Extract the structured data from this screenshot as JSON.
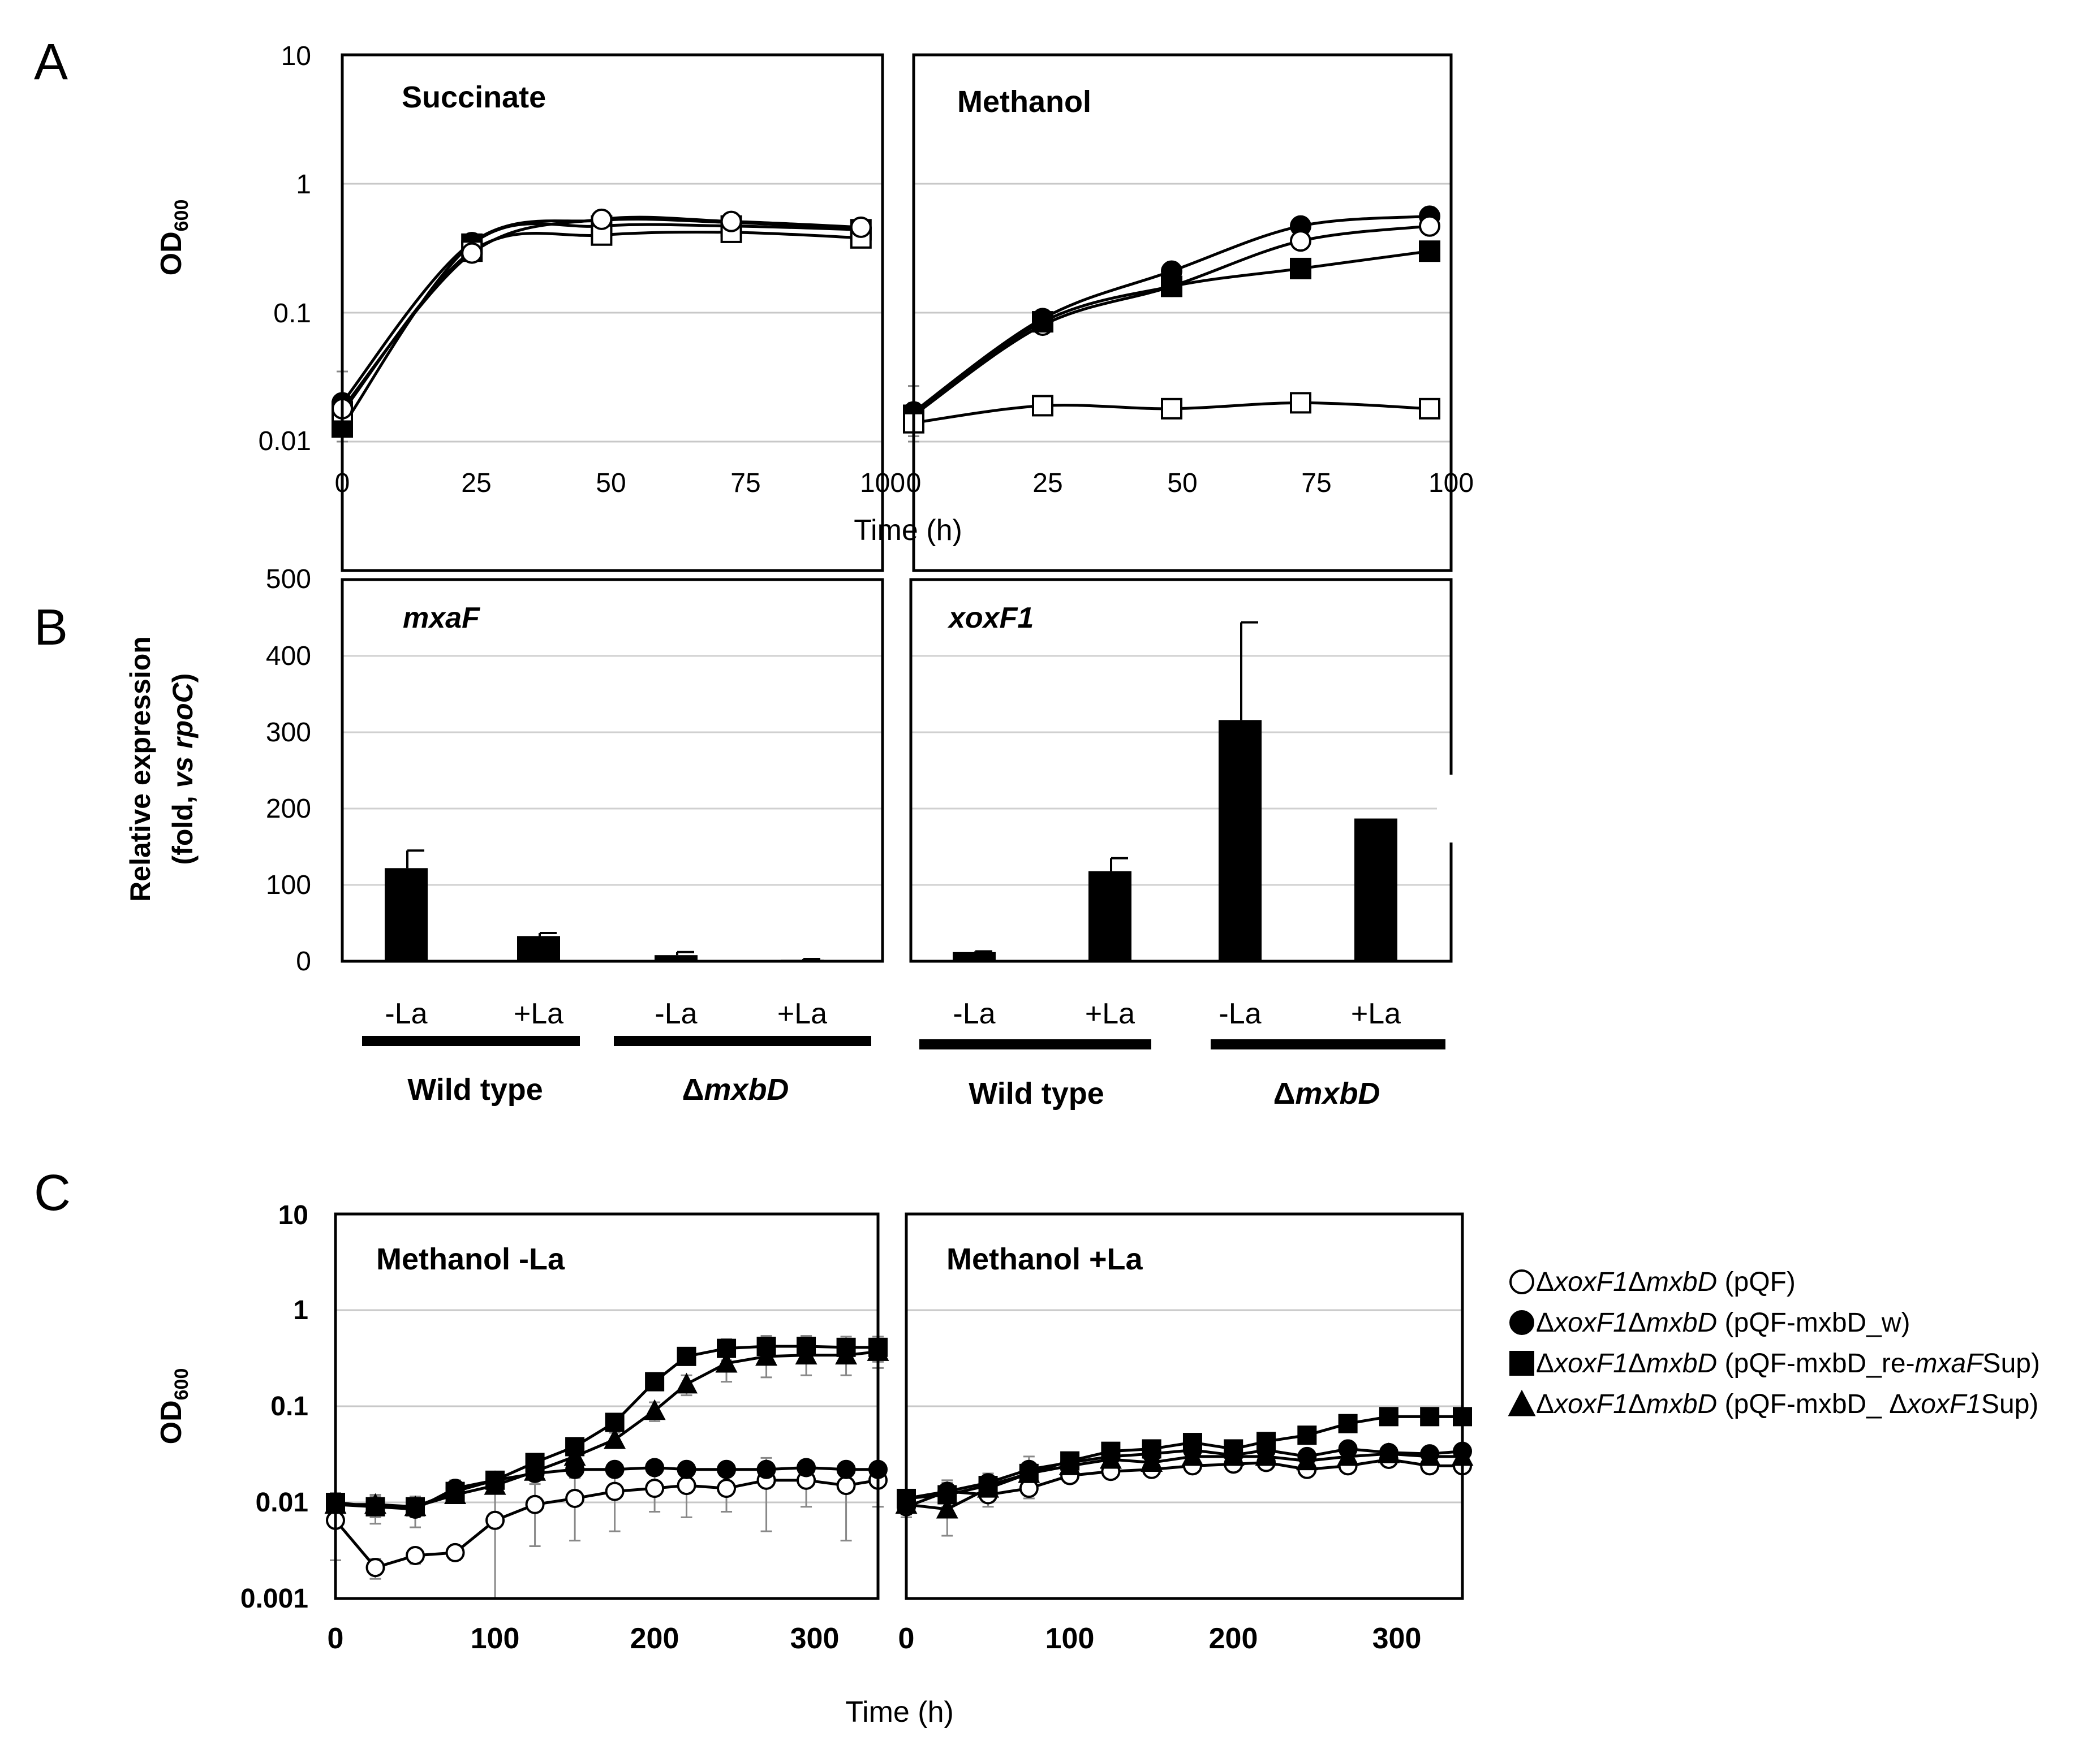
{
  "figure": {
    "panel_labels": [
      "A",
      "B",
      "C"
    ],
    "shared_xlabel_a": "Time (h)",
    "shared_xlabel_c": "Time (h)"
  },
  "chart_data": [
    {
      "id": "A-succinate",
      "type": "line",
      "scale": "log",
      "title": "Succinate",
      "ylabel": "OD600",
      "ylim": [
        0.01,
        10
      ],
      "yticks": [
        "0.01",
        "0.1",
        "1",
        "10"
      ],
      "xlim": [
        0,
        100
      ],
      "xticks": [
        "0",
        "25",
        "50",
        "75",
        "100"
      ],
      "x": [
        0,
        24,
        48,
        72,
        96
      ],
      "series": [
        {
          "name": "wt-filled-circle",
          "marker": "circle-filled",
          "values": [
            0.02,
            0.35,
            0.52,
            0.5,
            0.45
          ],
          "errors": [
            0.015,
            0.02,
            0.02,
            0.02,
            0.02
          ]
        },
        {
          "name": "filled-square",
          "marker": "square-filled",
          "values": [
            0.013,
            0.34,
            0.47,
            0.47,
            0.44
          ],
          "errors": [
            0.003,
            0.02,
            0.02,
            0.02,
            0.02
          ]
        },
        {
          "name": "open-square",
          "marker": "square-open",
          "values": [
            0.017,
            0.3,
            0.4,
            0.42,
            0.38
          ],
          "errors": [
            0.004,
            0.02,
            0.02,
            0.02,
            0.02
          ]
        },
        {
          "name": "open-circle",
          "marker": "circle-open",
          "values": [
            0.018,
            0.29,
            0.53,
            0.51,
            0.46
          ],
          "errors": [
            0.004,
            0.02,
            0.02,
            0.02,
            0.02
          ]
        }
      ]
    },
    {
      "id": "A-methanol",
      "type": "line",
      "scale": "log",
      "title": "Methanol",
      "ylim": [
        0.01,
        10
      ],
      "xlim": [
        0,
        100
      ],
      "xticks": [
        "0",
        "25",
        "50",
        "75",
        "100"
      ],
      "x": [
        0,
        24,
        48,
        72,
        96
      ],
      "series": [
        {
          "name": "filled-circle",
          "marker": "circle-filled",
          "values": [
            0.017,
            0.09,
            0.21,
            0.47,
            0.56
          ],
          "errors": [
            0.01,
            0.005,
            0.01,
            0.02,
            0.03
          ]
        },
        {
          "name": "open-circle",
          "marker": "circle-open",
          "values": [
            0.016,
            0.08,
            0.16,
            0.36,
            0.47
          ],
          "errors": [
            0.004,
            0.005,
            0.01,
            0.02,
            0.02
          ]
        },
        {
          "name": "filled-square",
          "marker": "square-filled",
          "values": [
            0.016,
            0.085,
            0.16,
            0.22,
            0.3
          ],
          "errors": [
            0.003,
            0.005,
            0.01,
            0.02,
            0.02
          ]
        },
        {
          "name": "open-square",
          "marker": "square-open",
          "values": [
            0.014,
            0.019,
            0.018,
            0.02,
            0.018
          ],
          "errors": [
            0.003,
            0.002,
            0.002,
            0.002,
            0.002
          ]
        }
      ]
    },
    {
      "id": "B-mxaF",
      "type": "bar",
      "title": "mxaF",
      "ylabel_line1": "Relative expression",
      "ylabel_line2_pre": "(fold, ",
      "ylabel_line2_vs": "vs",
      "ylabel_line2_gene": "rpoC",
      "ylabel_line2_post": ")",
      "ylim": [
        0,
        500
      ],
      "yticks": [
        "0",
        "100",
        "200",
        "300",
        "400",
        "500"
      ],
      "categories": [
        "-La",
        "+La",
        "-La",
        "+La"
      ],
      "values": [
        122,
        33,
        8,
        2
      ],
      "errors": [
        23,
        4,
        4,
        1
      ],
      "groups": [
        {
          "label_pre": "",
          "label_ital": "",
          "label_plain": "Wild type"
        },
        {
          "label_pre": "Δ",
          "label_ital": "mxbD",
          "label_plain": ""
        }
      ]
    },
    {
      "id": "B-xoxF1",
      "type": "bar",
      "title": "xoxF1",
      "ylim": [
        0,
        500
      ],
      "categories": [
        "-La",
        "+La",
        "-La",
        "+La"
      ],
      "values": [
        12,
        118,
        316,
        187
      ],
      "errors": [
        1,
        17,
        128,
        0
      ],
      "groups": [
        {
          "label_pre": "",
          "label_ital": "",
          "label_plain": "Wild type"
        },
        {
          "label_pre": "Δ",
          "label_ital": "mxbD",
          "label_plain": ""
        }
      ]
    },
    {
      "id": "C-minusLa",
      "type": "line",
      "scale": "log",
      "title": "Methanol -La",
      "ylabel": "OD600",
      "ylim": [
        0.001,
        10
      ],
      "yticks": [
        "0.001",
        "0.01",
        "0.1",
        "1",
        "10"
      ],
      "xlim": [
        0,
        340
      ],
      "xticks": [
        "0",
        "100",
        "200",
        "300"
      ],
      "x": [
        0,
        25,
        50,
        75,
        100,
        125,
        150,
        175,
        200,
        220,
        245,
        270,
        295,
        320,
        340
      ],
      "series": [
        {
          "name": "open-circle",
          "marker": "circle-open",
          "values": [
            0.0065,
            0.0021,
            0.0028,
            0.003,
            0.0065,
            0.0095,
            0.011,
            0.013,
            0.014,
            0.015,
            0.014,
            0.017,
            0.017,
            0.015,
            0.017
          ],
          "errors": [
            0.004,
            0.0005,
            0.0005,
            0.0005,
            0.006,
            0.006,
            0.007,
            0.008,
            0.006,
            0.008,
            0.006,
            0.012,
            0.008,
            0.011,
            0.008
          ]
        },
        {
          "name": "filled-circle",
          "marker": "circle-filled",
          "values": [
            0.0095,
            0.009,
            0.0085,
            0.014,
            0.017,
            0.02,
            0.022,
            0.022,
            0.023,
            0.022,
            0.022,
            0.022,
            0.023,
            0.022,
            0.022
          ],
          "errors": [
            0.003,
            0.003,
            0.003,
            0.003,
            0.003,
            0.003,
            0.003,
            0.003,
            0.003,
            0.003,
            0.003,
            0.003,
            0.003,
            0.003,
            0.003
          ]
        },
        {
          "name": "filled-square",
          "marker": "square-filled",
          "values": [
            0.01,
            0.009,
            0.009,
            0.013,
            0.017,
            0.026,
            0.038,
            0.068,
            0.18,
            0.33,
            0.4,
            0.42,
            0.42,
            0.41,
            0.41
          ],
          "errors": [
            0.002,
            0.002,
            0.002,
            0.002,
            0.002,
            0.003,
            0.005,
            0.01,
            0.03,
            0.05,
            0.1,
            0.12,
            0.12,
            0.12,
            0.12
          ]
        },
        {
          "name": "filled-triangle",
          "marker": "triangle-filled",
          "values": [
            0.0095,
            0.0095,
            0.009,
            0.012,
            0.015,
            0.021,
            0.03,
            0.045,
            0.09,
            0.17,
            0.28,
            0.33,
            0.34,
            0.34,
            0.37
          ],
          "errors": [
            0.002,
            0.002,
            0.002,
            0.002,
            0.002,
            0.003,
            0.004,
            0.008,
            0.02,
            0.04,
            0.1,
            0.13,
            0.13,
            0.13,
            0.12
          ]
        }
      ]
    },
    {
      "id": "C-plusLa",
      "type": "line",
      "scale": "log",
      "title": "Methanol +La",
      "ylim": [
        0.001,
        10
      ],
      "xlim": [
        0,
        340
      ],
      "xticks": [
        "0",
        "100",
        "200",
        "300"
      ],
      "x": [
        0,
        25,
        50,
        75,
        100,
        125,
        150,
        175,
        200,
        220,
        245,
        270,
        295,
        320,
        340
      ],
      "series": [
        {
          "name": "open-circle",
          "marker": "circle-open",
          "values": [
            0.009,
            0.013,
            0.012,
            0.014,
            0.019,
            0.021,
            0.022,
            0.024,
            0.025,
            0.026,
            0.022,
            0.024,
            0.028,
            0.024,
            0.024
          ],
          "errors": [
            0.002,
            0.003,
            0.003,
            0.003,
            0.003,
            0.003,
            0.003,
            0.003,
            0.003,
            0.003,
            0.003,
            0.003,
            0.003,
            0.003,
            0.003
          ]
        },
        {
          "name": "filled-circle",
          "marker": "circle-filled",
          "values": [
            0.011,
            0.013,
            0.016,
            0.022,
            0.026,
            0.03,
            0.032,
            0.035,
            0.031,
            0.035,
            0.03,
            0.036,
            0.033,
            0.032,
            0.034
          ],
          "errors": [
            0.002,
            0.004,
            0.004,
            0.008,
            0.006,
            0.006,
            0.006,
            0.005,
            0.005,
            0.005,
            0.005,
            0.005,
            0.005,
            0.005,
            0.005
          ]
        },
        {
          "name": "filled-square",
          "marker": "square-filled",
          "values": [
            0.011,
            0.012,
            0.015,
            0.02,
            0.027,
            0.034,
            0.036,
            0.042,
            0.036,
            0.043,
            0.05,
            0.066,
            0.078,
            0.078,
            0.078
          ],
          "errors": [
            0.002,
            0.003,
            0.004,
            0.005,
            0.005,
            0.005,
            0.005,
            0.005,
            0.005,
            0.005,
            0.005,
            0.006,
            0.006,
            0.006,
            0.006
          ]
        },
        {
          "name": "filled-triangle",
          "marker": "triangle-filled",
          "values": [
            0.0095,
            0.0085,
            0.014,
            0.02,
            0.024,
            0.028,
            0.026,
            0.03,
            0.03,
            0.03,
            0.027,
            0.03,
            0.032,
            0.03,
            0.03
          ],
          "errors": [
            0.002,
            0.004,
            0.004,
            0.004,
            0.004,
            0.004,
            0.004,
            0.004,
            0.004,
            0.004,
            0.004,
            0.004,
            0.004,
            0.004,
            0.004
          ]
        }
      ]
    }
  ],
  "legend": [
    {
      "marker": "circle-open",
      "delta1": "Δ",
      "ital1": "xoxF1",
      "delta2": "Δ",
      "ital2": "mxbD",
      "plain": " (pQF)",
      "ital3": "",
      "tail": ""
    },
    {
      "marker": "circle-filled",
      "delta1": "Δ",
      "ital1": "xoxF1",
      "delta2": "Δ",
      "ital2": "mxbD",
      "plain": " (pQF-mxbD_w)",
      "ital3": "",
      "tail": ""
    },
    {
      "marker": "square-filled",
      "delta1": "Δ",
      "ital1": "xoxF1",
      "delta2": "Δ",
      "ital2": "mxbD",
      "plain": " (pQF-mxbD_re-",
      "ital3": "mxaF",
      "tail": "Sup)"
    },
    {
      "marker": "triangle-filled",
      "delta1": "Δ",
      "ital1": "xoxF1",
      "delta2": "Δ",
      "ital2": "mxbD",
      "plain": " (pQF-mxbD_ Δ",
      "ital3": "xoxF1",
      "tail": "Sup)"
    }
  ]
}
